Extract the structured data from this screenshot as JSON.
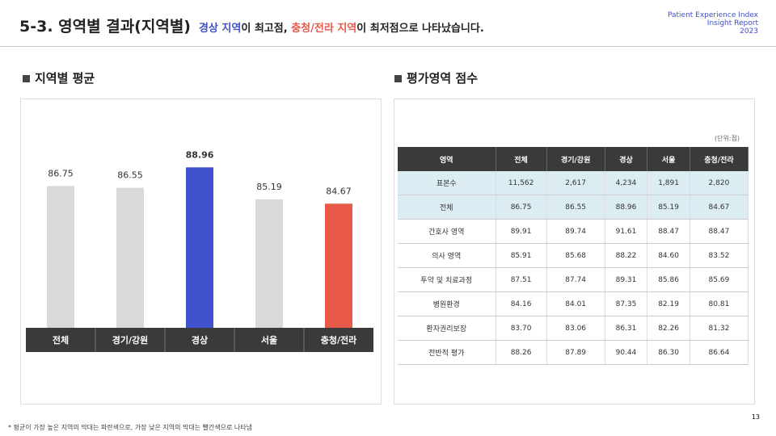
{
  "header": {
    "title": "5-3. 영역별 결과(지역별)",
    "headline": [
      "경상 지역",
      "이 최고점, ",
      "충청/전라 지역",
      "이 최저점으로 나타났습니다."
    ],
    "brand": [
      "Patient Experience Index",
      "Insight Report",
      "2023"
    ]
  },
  "sections": [
    "지역별 평균",
    "평가영역 점수"
  ],
  "chart_data": {
    "type": "bar",
    "categories": [
      "전체",
      "경기/강원",
      "경상",
      "서울",
      "충청/전라"
    ],
    "values": [
      86.75,
      86.55,
      88.96,
      85.19,
      84.67
    ],
    "colors": [
      "#d9d9d9",
      "#d9d9d9",
      "#3f51cc",
      "#d9d9d9",
      "#e8594a"
    ],
    "ylim": [
      70,
      95
    ]
  },
  "table": {
    "unit": "(단위:점)",
    "columns": [
      "영역",
      "전체",
      "경기/강원",
      "경상",
      "서울",
      "충청/전라"
    ],
    "rows": [
      [
        "표본수",
        "11,562",
        "2,617",
        "4,234",
        "1,891",
        "2,820"
      ],
      [
        "전체",
        "86.75",
        "86.55",
        "88.96",
        "85.19",
        "84.67"
      ],
      [
        "간호사 영역",
        "89.91",
        "89.74",
        "91.61",
        "88.47",
        "88.47"
      ],
      [
        "의사 영역",
        "85.91",
        "85.68",
        "88.22",
        "84.60",
        "83.52"
      ],
      [
        "투약 및 치료과정",
        "87.51",
        "87.74",
        "89.31",
        "85.86",
        "85.69"
      ],
      [
        "병원환경",
        "84.16",
        "84.01",
        "87.35",
        "82.19",
        "80.81"
      ],
      [
        "환자권리보장",
        "83.70",
        "83.06",
        "86.31",
        "82.26",
        "81.32"
      ],
      [
        "전반적 평가",
        "88.26",
        "87.89",
        "90.44",
        "86.30",
        "86.64"
      ]
    ]
  },
  "footnote": "* 평균이 가장 높은 지역의 막대는 파란색으로, 가장 낮은 지역의 막대는 빨간색으로 나타냄",
  "page": "13"
}
